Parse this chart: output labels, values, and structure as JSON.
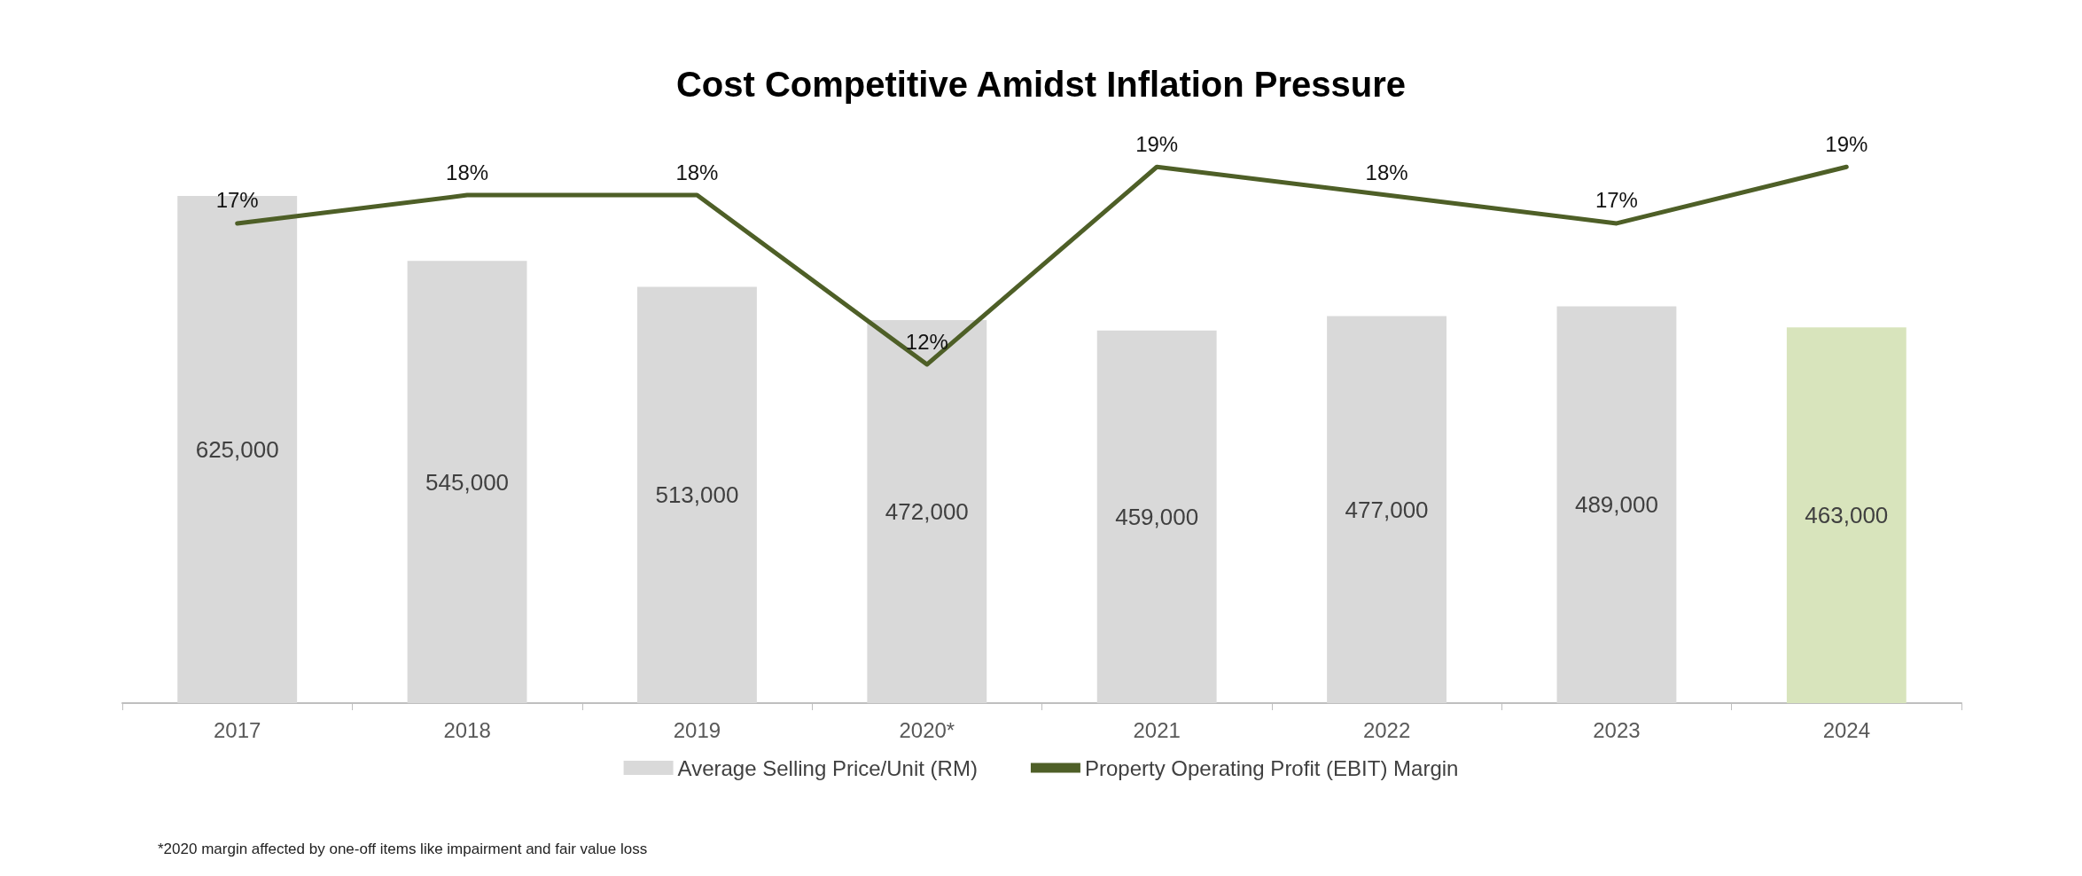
{
  "chart_data": {
    "type": "bar",
    "title": "Cost Competitive Amidst Inflation Pressure",
    "categories": [
      "2017",
      "2018",
      "2019",
      "2020*",
      "2021",
      "2022",
      "2023",
      "2024"
    ],
    "series": [
      {
        "name": "Average Selling Price/Unit (RM)",
        "color": "#d9d9d9",
        "colors": [
          "#d9d9d9",
          "#d9d9d9",
          "#d9d9d9",
          "#d9d9d9",
          "#d9d9d9",
          "#d9d9d9",
          "#d9d9d9",
          "#d8e4bc"
        ],
        "values": [
          625000,
          545000,
          513000,
          472000,
          459000,
          477000,
          489000,
          463000
        ],
        "value_labels": [
          "625,000",
          "545,000",
          "513,000",
          "472,000",
          "459,000",
          "477,000",
          "489,000",
          "463,000"
        ]
      },
      {
        "name": "Property Operating Profit (EBIT) Margin",
        "type": "line",
        "axis": "y2",
        "color": "#4e5f27",
        "values": [
          17,
          18,
          18,
          12,
          19,
          18,
          17,
          19
        ],
        "value_labels": [
          "17%",
          "18%",
          "18%",
          "12%",
          "19%",
          "18%",
          "17%",
          "19%"
        ]
      }
    ],
    "tick_labels": "x",
    "legend": "bottom",
    "marker": "none",
    "line_style": "solid",
    "annotations": [
      "*2020 margin affected by one-off items like impairment and fair value loss"
    ]
  }
}
